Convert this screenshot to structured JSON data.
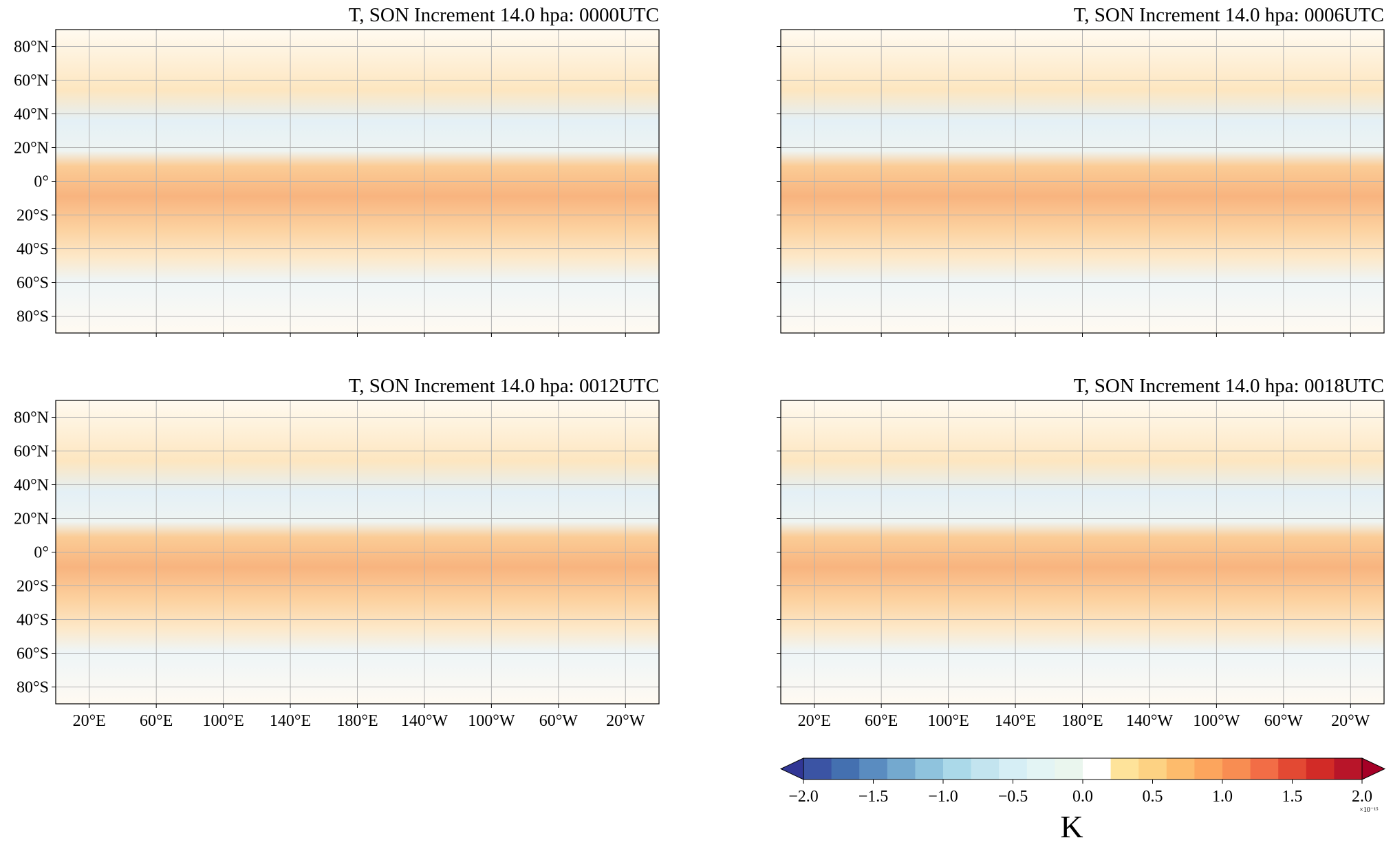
{
  "panels": [
    {
      "title": "T, SON Increment 14.0 hpa: 0000UTC"
    },
    {
      "title": "T, SON Increment 14.0 hpa: 0006UTC"
    },
    {
      "title": "T, SON Increment 14.0 hpa: 0012UTC"
    },
    {
      "title": "T, SON Increment 14.0 hpa: 0018UTC"
    }
  ],
  "lat_lim": [
    -90,
    90
  ],
  "lat_ticks": [
    {
      "value": 80,
      "label": "80°N"
    },
    {
      "value": 60,
      "label": "60°N"
    },
    {
      "value": 40,
      "label": "40°N"
    },
    {
      "value": 20,
      "label": "20°N"
    },
    {
      "value": 0,
      "label": "0°"
    },
    {
      "value": -20,
      "label": "20°S"
    },
    {
      "value": -40,
      "label": "40°S"
    },
    {
      "value": -60,
      "label": "60°S"
    },
    {
      "value": -80,
      "label": "80°S"
    }
  ],
  "lon_lim": [
    0,
    360
  ],
  "lon_ticks": [
    {
      "value": 20,
      "label": "20°E"
    },
    {
      "value": 60,
      "label": "60°E"
    },
    {
      "value": 100,
      "label": "100°E"
    },
    {
      "value": 140,
      "label": "140°E"
    },
    {
      "value": 180,
      "label": "180°E"
    },
    {
      "value": 220,
      "label": "140°W"
    },
    {
      "value": 260,
      "label": "100°W"
    },
    {
      "value": 300,
      "label": "60°W"
    },
    {
      "value": 340,
      "label": "20°W"
    }
  ],
  "grid": true,
  "colorbar": {
    "label": "K",
    "exponent_label": "×10⁻¹⁵",
    "lim": [
      -2,
      2
    ],
    "ticks": [
      {
        "value": -2,
        "label": "−2.0"
      },
      {
        "value": -1.5,
        "label": "−1.5"
      },
      {
        "value": -1,
        "label": "−1.0"
      },
      {
        "value": -0.5,
        "label": "−0.5"
      },
      {
        "value": 0,
        "label": "0.0"
      },
      0.5,
      {
        "value": 1,
        "label": "1.0"
      },
      1.5,
      {
        "value": 2,
        "label": "2.0"
      }
    ],
    "levels": [
      -2,
      -1.8,
      -1.6,
      -1.4,
      -1.2,
      -1,
      -0.8,
      -0.6,
      -0.4,
      -0.2,
      0,
      0.2,
      0.4,
      0.6,
      0.8,
      1,
      1.2,
      1.4,
      1.6,
      1.8,
      2
    ],
    "colors": [
      "#3b54a4",
      "#4470b0",
      "#5a8cc0",
      "#74a9cf",
      "#8fc3dd",
      "#abd9e9",
      "#c3e4ef",
      "#d6eef5",
      "#e3f4f4",
      "#eaf6ee",
      "#ffffff",
      "#fee39a",
      "#fdd283",
      "#fdbb6c",
      "#fca55d",
      "#f88d52",
      "#f26d46",
      "#e34933",
      "#d22b27",
      "#b81529"
    ],
    "under_color": "#313695",
    "over_color": "#a50026"
  }
}
